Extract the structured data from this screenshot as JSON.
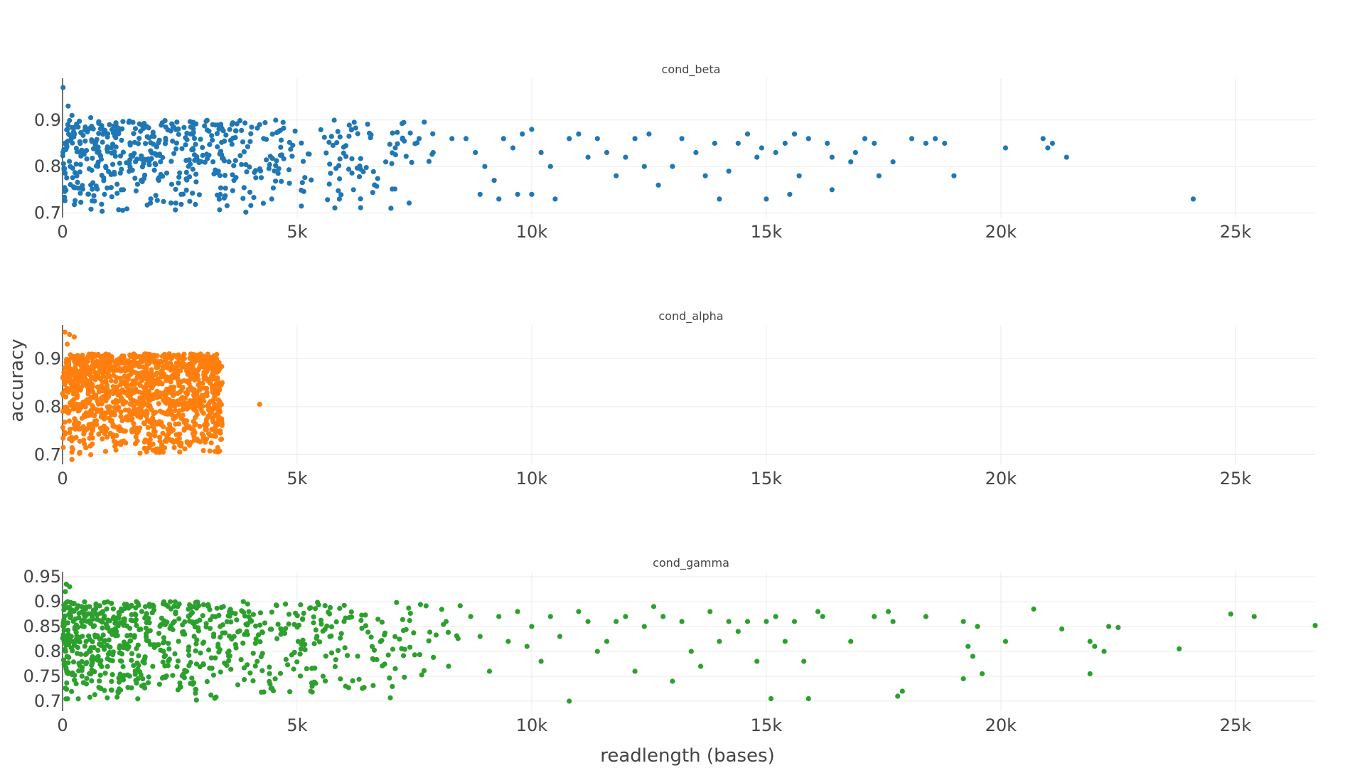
{
  "chart_data": {
    "type": "scatter",
    "layout": "three vertically stacked panels sharing x axis",
    "xlabel": "readlength (bases)",
    "ylabel": "accuracy",
    "xlim": [
      0,
      26700
    ],
    "x_ticks": [
      0,
      5000,
      10000,
      15000,
      20000,
      25000
    ],
    "x_tick_labels": [
      "0",
      "5k",
      "10k",
      "15k",
      "20k",
      "25k"
    ],
    "grid": true,
    "legend": "none",
    "panels": [
      {
        "name": "cond_beta",
        "color": "#1f77b4",
        "ylim": [
          0.69,
          0.99
        ],
        "y_ticks": [
          0.7,
          0.8,
          0.9
        ],
        "y_tick_labels": [
          "0.7",
          "0.8",
          "0.9"
        ],
        "dense_points": {
          "count": 560,
          "x_range": [
            0,
            8000
          ],
          "y_range": [
            0.7,
            0.9
          ],
          "x_decay": 3800
        },
        "points": [
          [
            10,
            0.97
          ],
          [
            120,
            0.93
          ],
          [
            200,
            0.91
          ],
          [
            600,
            0.905
          ],
          [
            1000,
            0.89
          ],
          [
            1500,
            0.895
          ],
          [
            2200,
            0.885
          ],
          [
            3200,
            0.89
          ],
          [
            4200,
            0.89
          ],
          [
            4700,
            0.895
          ],
          [
            8600,
            0.86
          ],
          [
            8800,
            0.83
          ],
          [
            9000,
            0.8
          ],
          [
            9200,
            0.77
          ],
          [
            9400,
            0.86
          ],
          [
            9600,
            0.84
          ],
          [
            9800,
            0.87
          ],
          [
            10000,
            0.88
          ],
          [
            10200,
            0.83
          ],
          [
            10400,
            0.8
          ],
          [
            8900,
            0.74
          ],
          [
            9300,
            0.73
          ],
          [
            9700,
            0.74
          ],
          [
            10000,
            0.74
          ],
          [
            10500,
            0.73
          ],
          [
            10800,
            0.86
          ],
          [
            11000,
            0.87
          ],
          [
            11200,
            0.82
          ],
          [
            11400,
            0.86
          ],
          [
            11600,
            0.83
          ],
          [
            11800,
            0.78
          ],
          [
            12000,
            0.82
          ],
          [
            12200,
            0.86
          ],
          [
            12400,
            0.8
          ],
          [
            12500,
            0.87
          ],
          [
            12700,
            0.76
          ],
          [
            13000,
            0.8
          ],
          [
            13200,
            0.86
          ],
          [
            13500,
            0.83
          ],
          [
            13700,
            0.78
          ],
          [
            13900,
            0.85
          ],
          [
            14000,
            0.73
          ],
          [
            14200,
            0.79
          ],
          [
            14400,
            0.85
          ],
          [
            14600,
            0.87
          ],
          [
            14800,
            0.82
          ],
          [
            14900,
            0.84
          ],
          [
            15000,
            0.73
          ],
          [
            15200,
            0.83
          ],
          [
            15400,
            0.85
          ],
          [
            15500,
            0.74
          ],
          [
            15600,
            0.87
          ],
          [
            15700,
            0.78
          ],
          [
            15900,
            0.86
          ],
          [
            16300,
            0.85
          ],
          [
            16400,
            0.82
          ],
          [
            16400,
            0.75
          ],
          [
            16800,
            0.81
          ],
          [
            16900,
            0.83
          ],
          [
            17100,
            0.86
          ],
          [
            17300,
            0.85
          ],
          [
            17400,
            0.78
          ],
          [
            17700,
            0.81
          ],
          [
            18100,
            0.86
          ],
          [
            18400,
            0.85
          ],
          [
            18600,
            0.86
          ],
          [
            18800,
            0.85
          ],
          [
            19000,
            0.78
          ],
          [
            20100,
            0.84
          ],
          [
            20900,
            0.86
          ],
          [
            21000,
            0.84
          ],
          [
            21100,
            0.85
          ],
          [
            21400,
            0.82
          ],
          [
            24100,
            0.73
          ],
          [
            6200,
            0.75
          ],
          [
            5900,
            0.73
          ],
          [
            7000,
            0.71
          ],
          [
            7600,
            0.86
          ],
          [
            7900,
            0.83
          ],
          [
            8300,
            0.86
          ]
        ]
      },
      {
        "name": "cond_alpha",
        "color": "#ff7f0e",
        "ylim": [
          0.68,
          0.97
        ],
        "y_ticks": [
          0.7,
          0.8,
          0.9
        ],
        "y_tick_labels": [
          "0.7",
          "0.8",
          "0.9"
        ],
        "dense_points": {
          "count": 1300,
          "x_range": [
            0,
            3400
          ],
          "y_range": [
            0.7,
            0.91
          ],
          "x_decay": 99999
        },
        "points": [
          [
            50,
            0.955
          ],
          [
            150,
            0.95
          ],
          [
            250,
            0.945
          ],
          [
            100,
            0.93
          ],
          [
            3300,
            0.86
          ],
          [
            3400,
            0.85
          ],
          [
            3200,
            0.83
          ],
          [
            3100,
            0.78
          ],
          [
            3000,
            0.74
          ],
          [
            4200,
            0.805
          ],
          [
            200,
            0.69
          ],
          [
            600,
            0.7
          ]
        ]
      },
      {
        "name": "cond_gamma",
        "color": "#2ca02c",
        "ylim": [
          0.68,
          0.96
        ],
        "y_ticks": [
          0.7,
          0.75,
          0.8,
          0.85,
          0.9,
          0.95
        ],
        "y_tick_labels": [
          "0.7",
          "0.75",
          "0.8",
          "0.85",
          "0.9",
          "0.95"
        ],
        "dense_points": {
          "count": 760,
          "x_range": [
            0,
            8500
          ],
          "y_range": [
            0.7,
            0.9
          ],
          "x_decay": 3500
        },
        "points": [
          [
            80,
            0.935
          ],
          [
            150,
            0.93
          ],
          [
            60,
            0.92
          ],
          [
            8700,
            0.87
          ],
          [
            8900,
            0.83
          ],
          [
            9100,
            0.76
          ],
          [
            9300,
            0.87
          ],
          [
            9500,
            0.82
          ],
          [
            9700,
            0.88
          ],
          [
            9900,
            0.81
          ],
          [
            10000,
            0.85
          ],
          [
            10200,
            0.78
          ],
          [
            10400,
            0.87
          ],
          [
            10600,
            0.83
          ],
          [
            10800,
            0.7
          ],
          [
            11000,
            0.88
          ],
          [
            11200,
            0.86
          ],
          [
            11400,
            0.8
          ],
          [
            11600,
            0.82
          ],
          [
            11800,
            0.86
          ],
          [
            12000,
            0.87
          ],
          [
            12200,
            0.76
          ],
          [
            12400,
            0.85
          ],
          [
            12600,
            0.89
          ],
          [
            12800,
            0.87
          ],
          [
            13000,
            0.74
          ],
          [
            13200,
            0.86
          ],
          [
            13400,
            0.8
          ],
          [
            13600,
            0.77
          ],
          [
            13800,
            0.88
          ],
          [
            14000,
            0.82
          ],
          [
            14200,
            0.86
          ],
          [
            14400,
            0.84
          ],
          [
            14600,
            0.86
          ],
          [
            14800,
            0.78
          ],
          [
            15000,
            0.86
          ],
          [
            15100,
            0.705
          ],
          [
            15200,
            0.87
          ],
          [
            15400,
            0.82
          ],
          [
            15600,
            0.86
          ],
          [
            15800,
            0.78
          ],
          [
            15900,
            0.705
          ],
          [
            16100,
            0.88
          ],
          [
            16200,
            0.87
          ],
          [
            16800,
            0.82
          ],
          [
            17300,
            0.87
          ],
          [
            17600,
            0.88
          ],
          [
            17700,
            0.86
          ],
          [
            17800,
            0.71
          ],
          [
            17900,
            0.72
          ],
          [
            18400,
            0.87
          ],
          [
            19200,
            0.86
          ],
          [
            19300,
            0.81
          ],
          [
            19400,
            0.79
          ],
          [
            19500,
            0.85
          ],
          [
            19200,
            0.745
          ],
          [
            19600,
            0.755
          ],
          [
            20100,
            0.82
          ],
          [
            20700,
            0.885
          ],
          [
            21300,
            0.845
          ],
          [
            21900,
            0.82
          ],
          [
            22000,
            0.81
          ],
          [
            21900,
            0.755
          ],
          [
            22200,
            0.8
          ],
          [
            22300,
            0.85
          ],
          [
            22500,
            0.848
          ],
          [
            23800,
            0.805
          ],
          [
            24900,
            0.875
          ],
          [
            25400,
            0.87
          ],
          [
            26700,
            0.852
          ]
        ]
      }
    ]
  }
}
